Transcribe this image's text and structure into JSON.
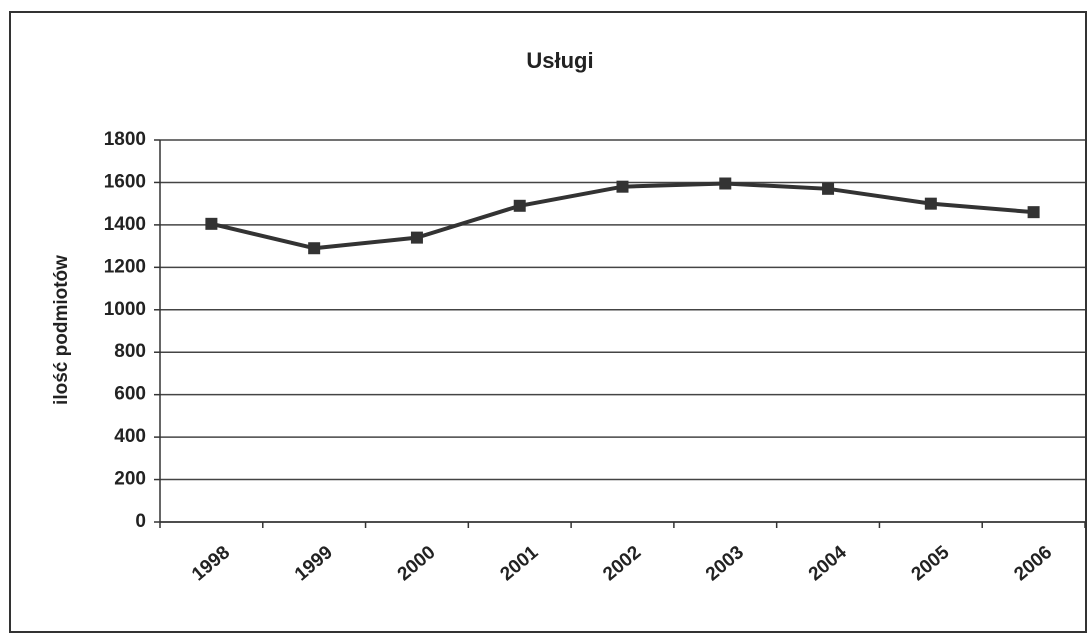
{
  "chart_data": {
    "type": "line",
    "title": "Usługi",
    "y_label": "ilość podmiotów",
    "categories": [
      "1998",
      "1999",
      "2000",
      "2001",
      "2002",
      "2003",
      "2004",
      "2005",
      "2006"
    ],
    "series": [
      {
        "name": "Usługi",
        "color": "#333333",
        "values": [
          1405,
          1290,
          1340,
          1490,
          1580,
          1595,
          1570,
          1500,
          1460
        ]
      }
    ],
    "ylim": [
      0,
      1800
    ],
    "yticks": [
      0,
      200,
      400,
      600,
      800,
      1000,
      1200,
      1400,
      1600,
      1800
    ],
    "grid": true,
    "legend": false
  }
}
